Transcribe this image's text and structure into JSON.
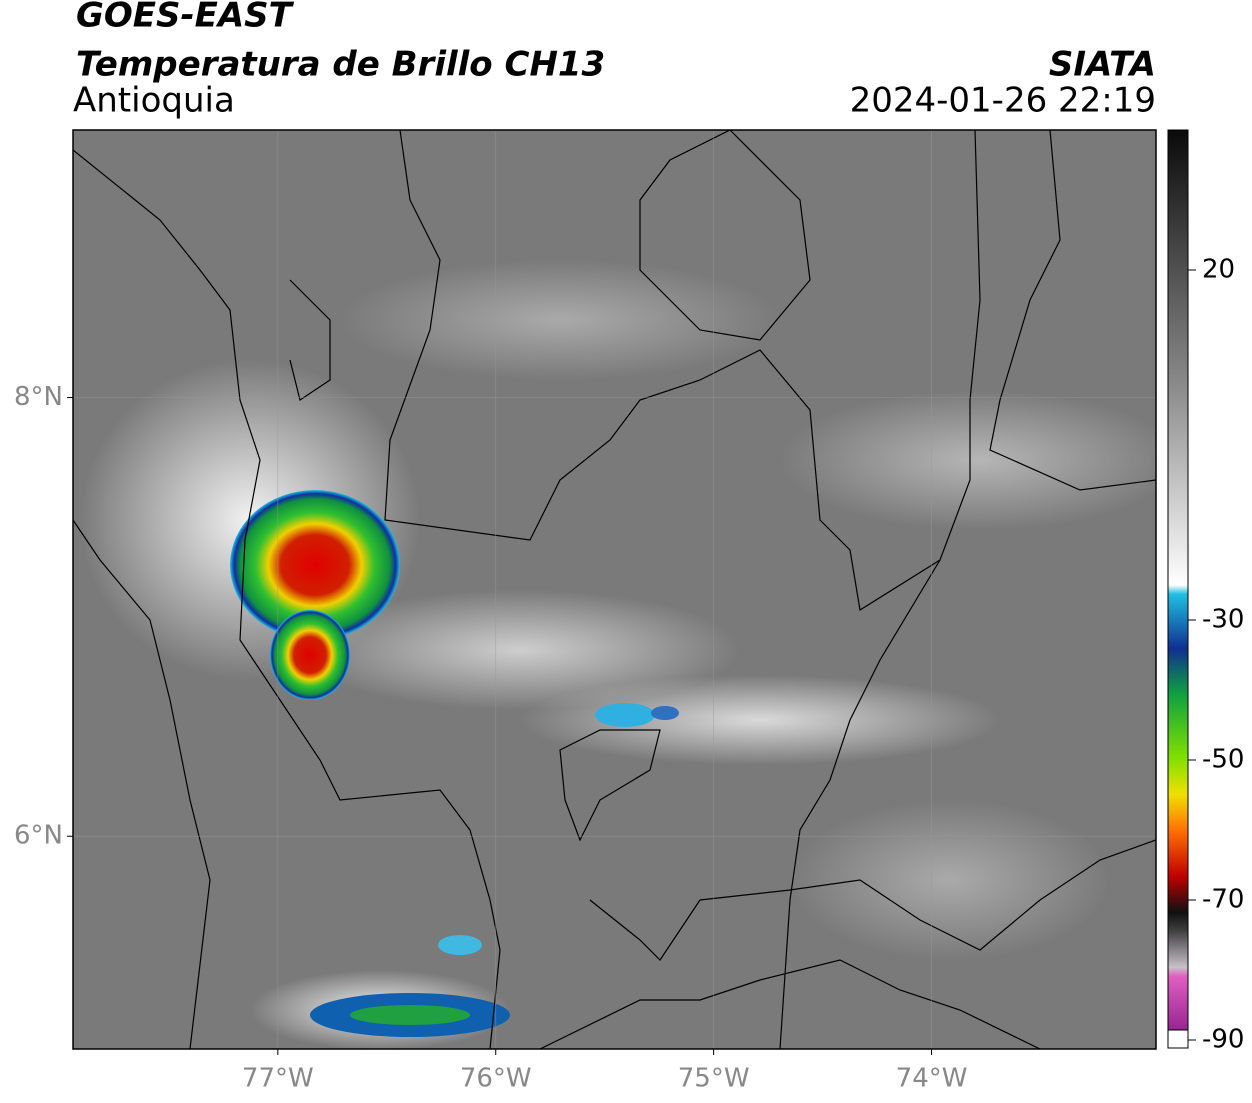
{
  "map": {
    "title": "GOES-EAST",
    "subtitle": "Temperatura de Brillo CH13",
    "region": "Antioquia",
    "source": "SIATA",
    "datetime": "2024-01-26 22:19",
    "xlim": [
      -77.94,
      -72.97
    ],
    "ylim": [
      5.03,
      9.22
    ],
    "xticks": [
      {
        "value": -77,
        "label": "77°W"
      },
      {
        "value": -76,
        "label": "76°W"
      },
      {
        "value": -75,
        "label": "75°W"
      },
      {
        "value": -74,
        "label": "74°W"
      }
    ],
    "yticks": [
      {
        "value": 8,
        "label": "8°N"
      },
      {
        "value": 6,
        "label": "6°N"
      }
    ],
    "grid": true,
    "colorbar": {
      "lim": [
        -90,
        40
      ],
      "ticks": [
        20,
        -30,
        -50,
        -70,
        -90
      ]
    }
  }
}
